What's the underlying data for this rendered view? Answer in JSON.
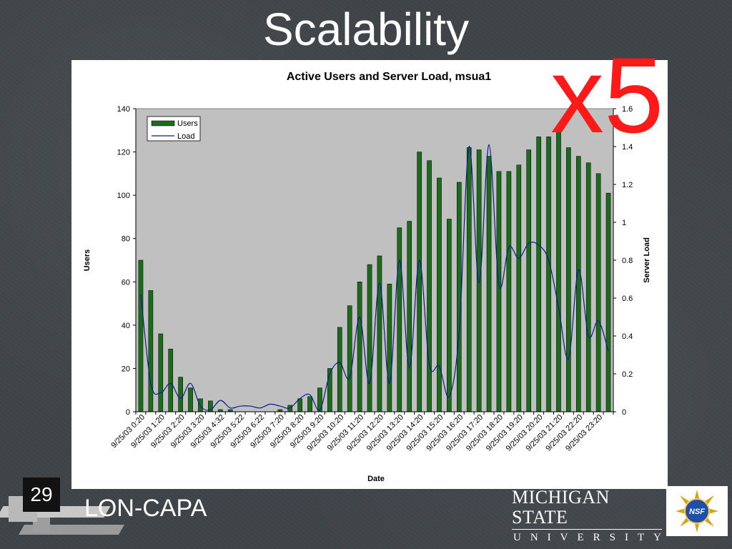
{
  "slide": {
    "title": "Scalability",
    "overlay_text": "x5",
    "slide_number": "29",
    "footer_brand": "LON-CAPA",
    "logo": {
      "line1": "MICHIGAN STATE",
      "line2": "UNIVERSITY",
      "seal": "NSF"
    }
  },
  "colors": {
    "bar": "#1c6b1c",
    "line": "#0b1f8a",
    "plot_bg": "#c0c0c0",
    "overlay": "#ff1a1a"
  },
  "chart_data": {
    "type": "bar",
    "title": "Active Users and Server Load, msua1",
    "xlabel": "Date",
    "ylabel": "Users",
    "y2label": "Server Load",
    "ylim": [
      0,
      140
    ],
    "y2lim": [
      0,
      1.6
    ],
    "yticks": [
      "0",
      "20",
      "40",
      "60",
      "80",
      "100",
      "120",
      "140"
    ],
    "y2ticks": [
      "0",
      "0.2",
      "0.4",
      "0.6",
      "0.8",
      "1",
      "1.2",
      "1.4",
      "1.6"
    ],
    "legend_position": "top-left",
    "grid": false,
    "tick_labels": [
      "9/25/03 0:20",
      "9/25/03 1:20",
      "9/25/03 2:20",
      "9/25/03 3:20",
      "9/25/03 4:32",
      "9/25/03 5:22",
      "9/25/03 6:22",
      "9/25/03 7:20",
      "9/25/03 8:20",
      "9/25/03 9:20",
      "9/25/03 10:20",
      "9/25/03 11:20",
      "9/25/03 12:20",
      "9/25/03 13:20",
      "9/25/03 14:20",
      "9/25/03 15:20",
      "9/25/03 16:20",
      "9/25/03 17:20",
      "9/25/03 18:20",
      "9/25/03 19:20",
      "9/25/03 20:20",
      "9/25/03 21:20",
      "9/25/03 22:20",
      "9/25/03 23:20"
    ],
    "series": [
      {
        "name": "Users",
        "type": "bar",
        "axis": "left",
        "values": [
          70,
          56,
          36,
          29,
          16,
          11,
          6,
          5,
          1,
          1,
          0,
          0,
          0,
          0,
          1,
          3,
          6,
          7,
          11,
          20,
          39,
          49,
          60,
          68,
          72,
          59,
          85,
          88,
          120,
          116,
          108,
          89,
          106,
          122,
          121,
          118,
          111,
          111,
          114,
          121,
          127,
          127,
          131,
          122,
          118,
          115,
          110,
          101
        ]
      },
      {
        "name": "Load",
        "type": "line",
        "axis": "right",
        "values": [
          0.62,
          0.15,
          0.1,
          0.15,
          0.07,
          0.15,
          0.03,
          0.01,
          0.06,
          0.02,
          0.03,
          0.03,
          0.02,
          0.04,
          0.03,
          0.02,
          0.07,
          0.09,
          0.01,
          0.2,
          0.26,
          0.18,
          0.5,
          0.15,
          0.68,
          0.15,
          0.8,
          0.23,
          0.8,
          0.25,
          0.24,
          0.08,
          0.42,
          1.4,
          0.68,
          1.41,
          0.67,
          0.87,
          0.81,
          0.89,
          0.88,
          0.8,
          0.55,
          0.28,
          0.75,
          0.4,
          0.48,
          0.32
        ]
      }
    ]
  }
}
